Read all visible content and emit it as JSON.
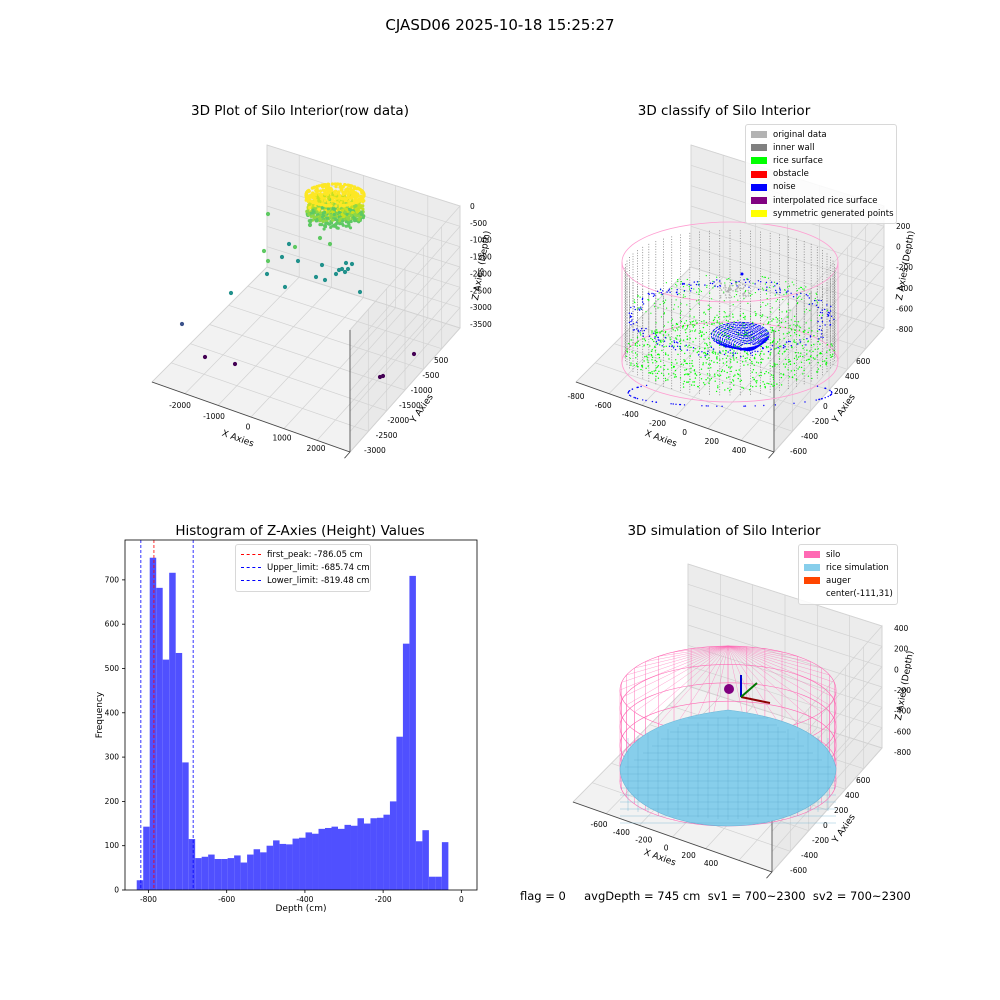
{
  "suptitle": "CJASD06 2025-10-18 15:25:27",
  "footer": "flag = 0     avgDepth = 745 cm  sv1 = 700~2300  sv2 = 700~2300",
  "colors": {
    "original_data": "#b3b3b3",
    "inner_wall": "#808080",
    "rice_surface": "#00ff00",
    "obstacle": "#ff0000",
    "noise": "#0000ff",
    "interpolated": "#800080",
    "symmetric": "#ffff00",
    "silo": "#ff69b4",
    "rice_simulation": "#87ceeb",
    "auger": "#ff4500",
    "hist_bar": "#5050ff"
  },
  "chart_data": [
    {
      "type": "scatter",
      "title": "3D Plot of Silo Interior(row data)",
      "xlabel": "X Axies",
      "ylabel": "Y Axies",
      "zlabel": "Z Axies (Depth)",
      "x_ticks": [
        "-2000",
        "-1000",
        "0",
        "1000",
        "2000"
      ],
      "y_ticks": [
        "500",
        "-500",
        "-1000",
        "-1500",
        "-2000",
        "-2500",
        "-3000"
      ],
      "z_ticks": [
        "0",
        "-500",
        "-1000",
        "-1500",
        "-2000",
        "-2500",
        "-3000",
        "-3500"
      ],
      "colormap": "viridis"
    },
    {
      "type": "scatter",
      "title": "3D classify of Silo Interior",
      "xlabel": "X Axies",
      "ylabel": "Y Axies",
      "zlabel": "Z Axies (Depth)",
      "x_ticks": [
        "-800",
        "-600",
        "-400",
        "-200",
        "0",
        "200",
        "400"
      ],
      "y_ticks": [
        "600",
        "400",
        "200",
        "0",
        "-200",
        "-400",
        "-600"
      ],
      "z_ticks": [
        "200",
        "0",
        "-200",
        "-400",
        "-600",
        "-800"
      ],
      "legend": [
        "original data",
        "inner wall",
        "rice surface",
        "obstacle",
        "noise",
        "interpolated rice surface",
        "symmetric generated points"
      ],
      "legend_position": "top-right"
    },
    {
      "type": "bar",
      "title": "Histogram of Z-Axies (Height) Values",
      "xlabel": "Depth (cm)",
      "ylabel": "Frequency",
      "x_ticks": [
        "-800",
        "-600",
        "-400",
        "-200",
        "0"
      ],
      "y_ticks": [
        "0",
        "100",
        "200",
        "300",
        "400",
        "500",
        "600",
        "700"
      ],
      "xlim": [
        -860,
        40
      ],
      "ylim": [
        0,
        790
      ],
      "bin_start": -830,
      "bin_width": 16.6,
      "values": [
        22,
        143,
        750,
        682,
        520,
        716,
        535,
        288,
        115,
        72,
        75,
        80,
        70,
        70,
        72,
        78,
        62,
        80,
        92,
        85,
        100,
        112,
        104,
        103,
        116,
        118,
        130,
        127,
        138,
        140,
        143,
        138,
        147,
        145,
        162,
        150,
        162,
        163,
        170,
        200,
        346,
        556,
        709,
        110,
        135,
        30,
        30,
        108
      ],
      "vlines": [
        {
          "x": -786.05,
          "label": "first_peak: -786.05 cm",
          "color": "#ff0000"
        },
        {
          "x": -685.74,
          "label": "Upper_limit: -685.74 cm",
          "color": "#0000ff"
        },
        {
          "x": -819.48,
          "label": "Lower_limit: -819.48 cm",
          "color": "#0000ff"
        }
      ],
      "legend_position": "top-center"
    },
    {
      "type": "area",
      "title": "3D simulation of Silo Interior",
      "xlabel": "X Axies",
      "ylabel": "Y Axies",
      "zlabel": "Z Axies (Depth)",
      "x_ticks": [
        "-600",
        "-400",
        "-200",
        "0",
        "200",
        "400"
      ],
      "y_ticks": [
        "600",
        "400",
        "200",
        "0",
        "-200",
        "-400",
        "-600"
      ],
      "z_ticks": [
        "400",
        "200",
        "0",
        "-200",
        "-400",
        "-600",
        "-800"
      ],
      "legend": [
        "silo",
        "rice simulation",
        "auger",
        "center(-111,31)"
      ],
      "legend_position": "top-right"
    }
  ]
}
